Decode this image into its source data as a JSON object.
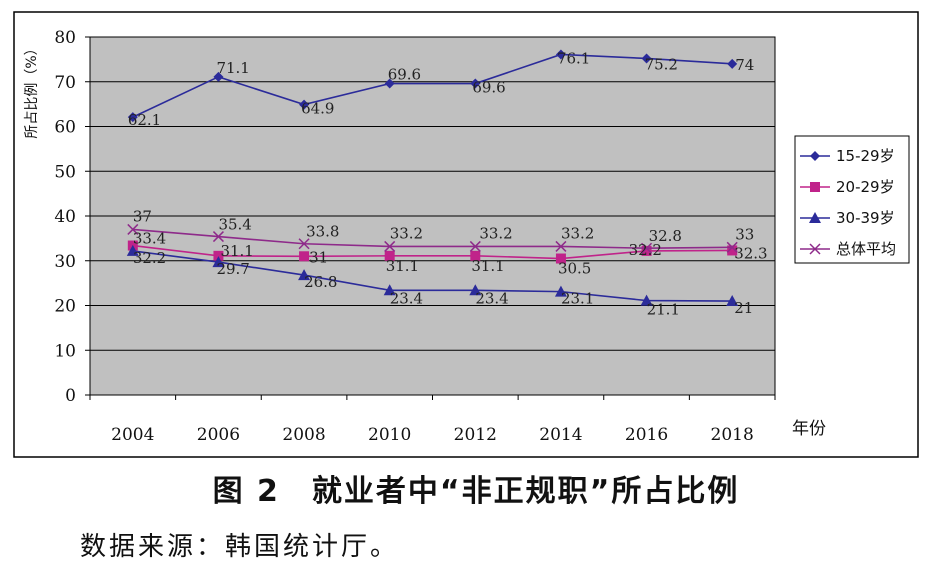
{
  "caption": "图 2　就业者中“非正规职”所占比例",
  "source": "数据来源：韩国统计厅。",
  "chart_data": {
    "type": "line",
    "ylabel": "所占比例（%）",
    "xlabel": "年份",
    "ylim": [
      0,
      80
    ],
    "yticks": [
      "0",
      "10",
      "20",
      "30",
      "40",
      "50",
      "60",
      "70",
      "80"
    ],
    "categories": [
      "2004",
      "2006",
      "2008",
      "2010",
      "2012",
      "2014",
      "2016",
      "2018"
    ],
    "grid": "horizontal",
    "legend_position": "right",
    "series": [
      {
        "name": "15-29岁",
        "marker": "diamond",
        "color": "#2b2b9a",
        "values": [
          62.1,
          71.1,
          64.9,
          69.6,
          69.6,
          76.1,
          75.2,
          74
        ],
        "labels": [
          "62.1",
          "71.1",
          "64.9",
          "69.6",
          "69.6",
          "76.1",
          "75.2",
          "74"
        ]
      },
      {
        "name": "20-29岁",
        "marker": "square",
        "color": "#c0238a",
        "values": [
          33.4,
          31.1,
          31,
          31.1,
          31.1,
          30.5,
          32.2,
          32.3
        ],
        "labels": [
          "33.4",
          "31.1",
          "31",
          "31.1",
          "31.1",
          "30.5",
          "32.2",
          "32.3"
        ]
      },
      {
        "name": "30-39岁",
        "marker": "triangle",
        "color": "#2b2b9a",
        "values": [
          32.2,
          29.7,
          26.8,
          23.4,
          23.4,
          23.1,
          21.1,
          21
        ],
        "labels": [
          "32.2",
          "29.7",
          "26.8",
          "23.4",
          "23.4",
          "23.1",
          "21.1",
          "21"
        ]
      },
      {
        "name": "总体平均",
        "marker": "x",
        "color": "#8e2a8a",
        "values": [
          37,
          35.4,
          33.8,
          33.2,
          33.2,
          33.2,
          32.8,
          33
        ],
        "labels": [
          "37",
          "35.4",
          "33.8",
          "33.2",
          "33.2",
          "33.2",
          "32.8",
          "33"
        ]
      }
    ]
  }
}
